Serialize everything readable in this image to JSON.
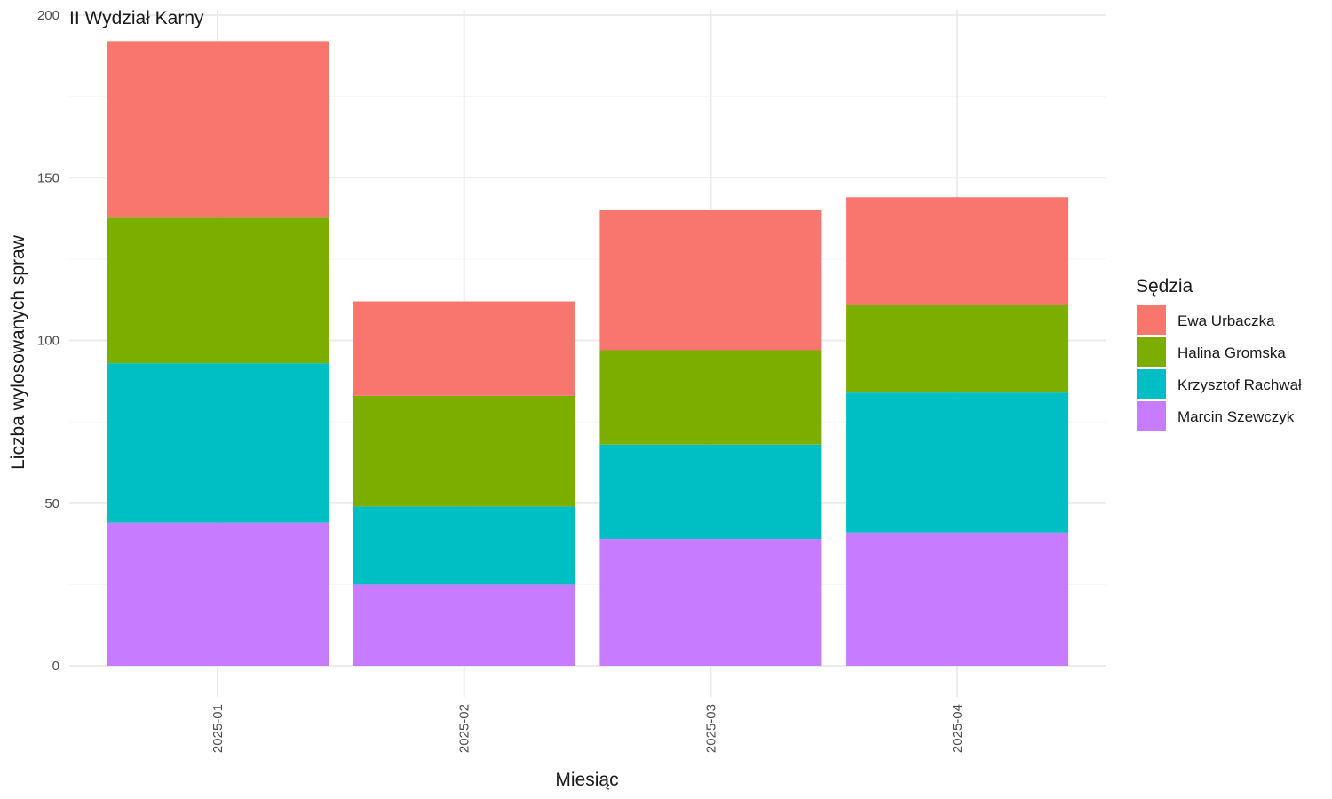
{
  "chart_data": {
    "type": "bar",
    "stacked": true,
    "title": "II Wydział Karny",
    "xlabel": "Miesiąc",
    "ylabel": "Liczba wylosowanych spraw",
    "categories": [
      "2025-01",
      "2025-02",
      "2025-03",
      "2025-04"
    ],
    "ylim": [
      0,
      200
    ],
    "yticks": [
      0,
      50,
      100,
      150,
      200
    ],
    "grid": true,
    "legend": {
      "title": "Sędzia",
      "position": "right"
    },
    "series": [
      {
        "name": "Marcin Szewczyk",
        "color": "#C77CFF",
        "values": [
          44,
          25,
          39,
          41
        ]
      },
      {
        "name": "Krzysztof Rachwał",
        "color": "#00BFC4",
        "values": [
          49,
          24,
          29,
          43
        ]
      },
      {
        "name": "Halina Gromska",
        "color": "#7CAE00",
        "values": [
          45,
          34,
          29,
          27
        ]
      },
      {
        "name": "Ewa Urbaczka",
        "color": "#F8766D",
        "values": [
          54,
          29,
          43,
          33
        ]
      }
    ],
    "legend_order": [
      "Ewa Urbaczka",
      "Halina Gromska",
      "Krzysztof Rachwał",
      "Marcin Szewczyk"
    ]
  }
}
